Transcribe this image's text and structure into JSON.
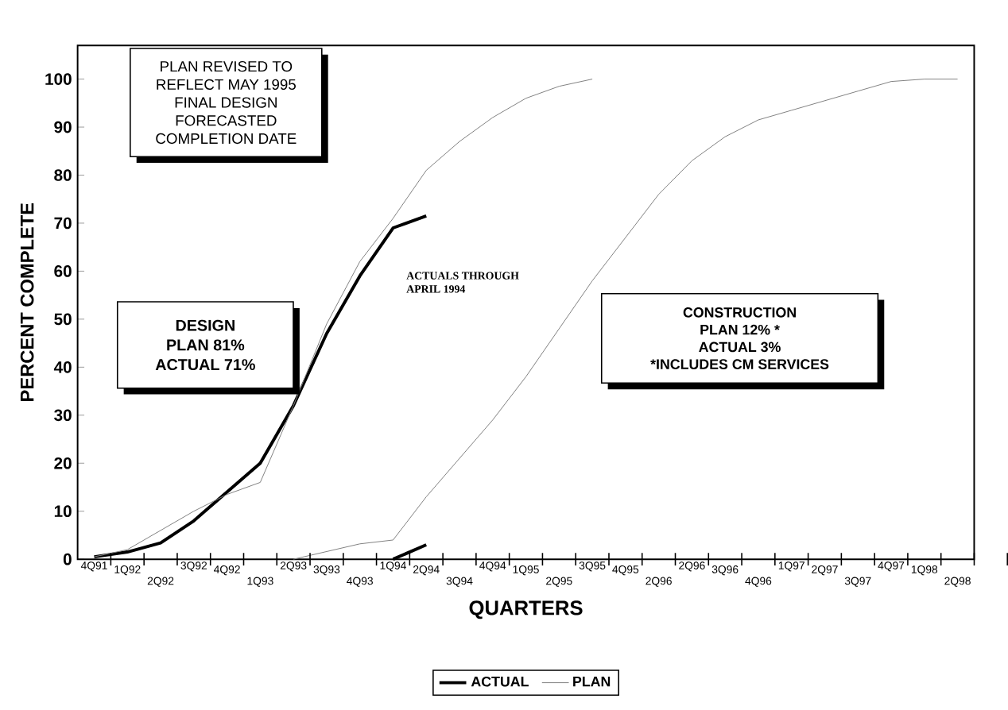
{
  "chart_data": {
    "type": "line",
    "xlabel": "QUARTERS",
    "ylabel": "PERCENT COMPLETE",
    "categories": [
      "4Q91",
      "1Q92",
      "2Q92",
      "3Q92",
      "4Q92",
      "1Q93",
      "2Q93",
      "3Q93",
      "4Q93",
      "1Q94",
      "2Q94",
      "3Q94",
      "4Q94",
      "1Q95",
      "2Q95",
      "3Q95",
      "4Q95",
      "2Q96",
      "2Q96",
      "3Q96",
      "4Q96",
      "1Q97",
      "2Q97",
      "3Q97",
      "4Q97",
      "1Q98",
      "2Q98"
    ],
    "series": [
      {
        "name": "ACTUAL",
        "color": "#000000",
        "values": [
          0.5,
          1.5,
          3.4,
          8,
          14,
          20,
          32,
          47,
          59,
          69,
          71.5,
          null,
          null,
          null,
          null,
          null,
          null,
          null,
          null,
          null,
          null,
          null,
          null,
          null,
          null,
          null,
          null
        ]
      },
      {
        "name": "PLAN",
        "color": "#808080",
        "values": [
          0.5,
          2,
          6,
          10,
          13.5,
          16,
          32,
          49,
          62,
          71,
          81,
          87,
          92,
          96,
          98.5,
          100,
          null,
          null,
          null,
          null,
          null,
          null,
          null,
          null,
          null,
          null,
          null
        ]
      },
      {
        "color": "#000000",
        "values": [
          null,
          null,
          null,
          null,
          null,
          null,
          null,
          null,
          null,
          0,
          3,
          null,
          null,
          null,
          null,
          null,
          null,
          null,
          null,
          null,
          null,
          null,
          null,
          null,
          null,
          null,
          null
        ]
      },
      {
        "color": "#808080",
        "values": [
          null,
          null,
          null,
          null,
          null,
          null,
          0,
          1.6,
          3.2,
          4,
          13,
          21,
          29,
          38,
          48,
          58,
          67,
          76,
          83,
          88,
          91.5,
          93.5,
          95.5,
          97.5,
          99.5,
          100,
          100
        ]
      }
    ],
    "ylim": [
      0,
      107
    ],
    "yticks": [
      0,
      10,
      20,
      30,
      40,
      50,
      60,
      70,
      80,
      90,
      100
    ],
    "legend": "bottom",
    "grid": false,
    "marker": "none",
    "annotations": [
      "PLAN REVISED TO",
      "REFLECT MAY 1995",
      "FINAL DESIGN",
      "FORECASTED",
      "COMPLETION DATE",
      "DESIGN",
      "PLAN   81%",
      "ACTUAL 71%",
      "CONSTRUCTION",
      "PLAN 12% *",
      "ACTUAL 3%",
      "*INCLUDES  CM  SERVICES",
      "ACTUALS THROUGH",
      "APRIL 1994"
    ]
  }
}
